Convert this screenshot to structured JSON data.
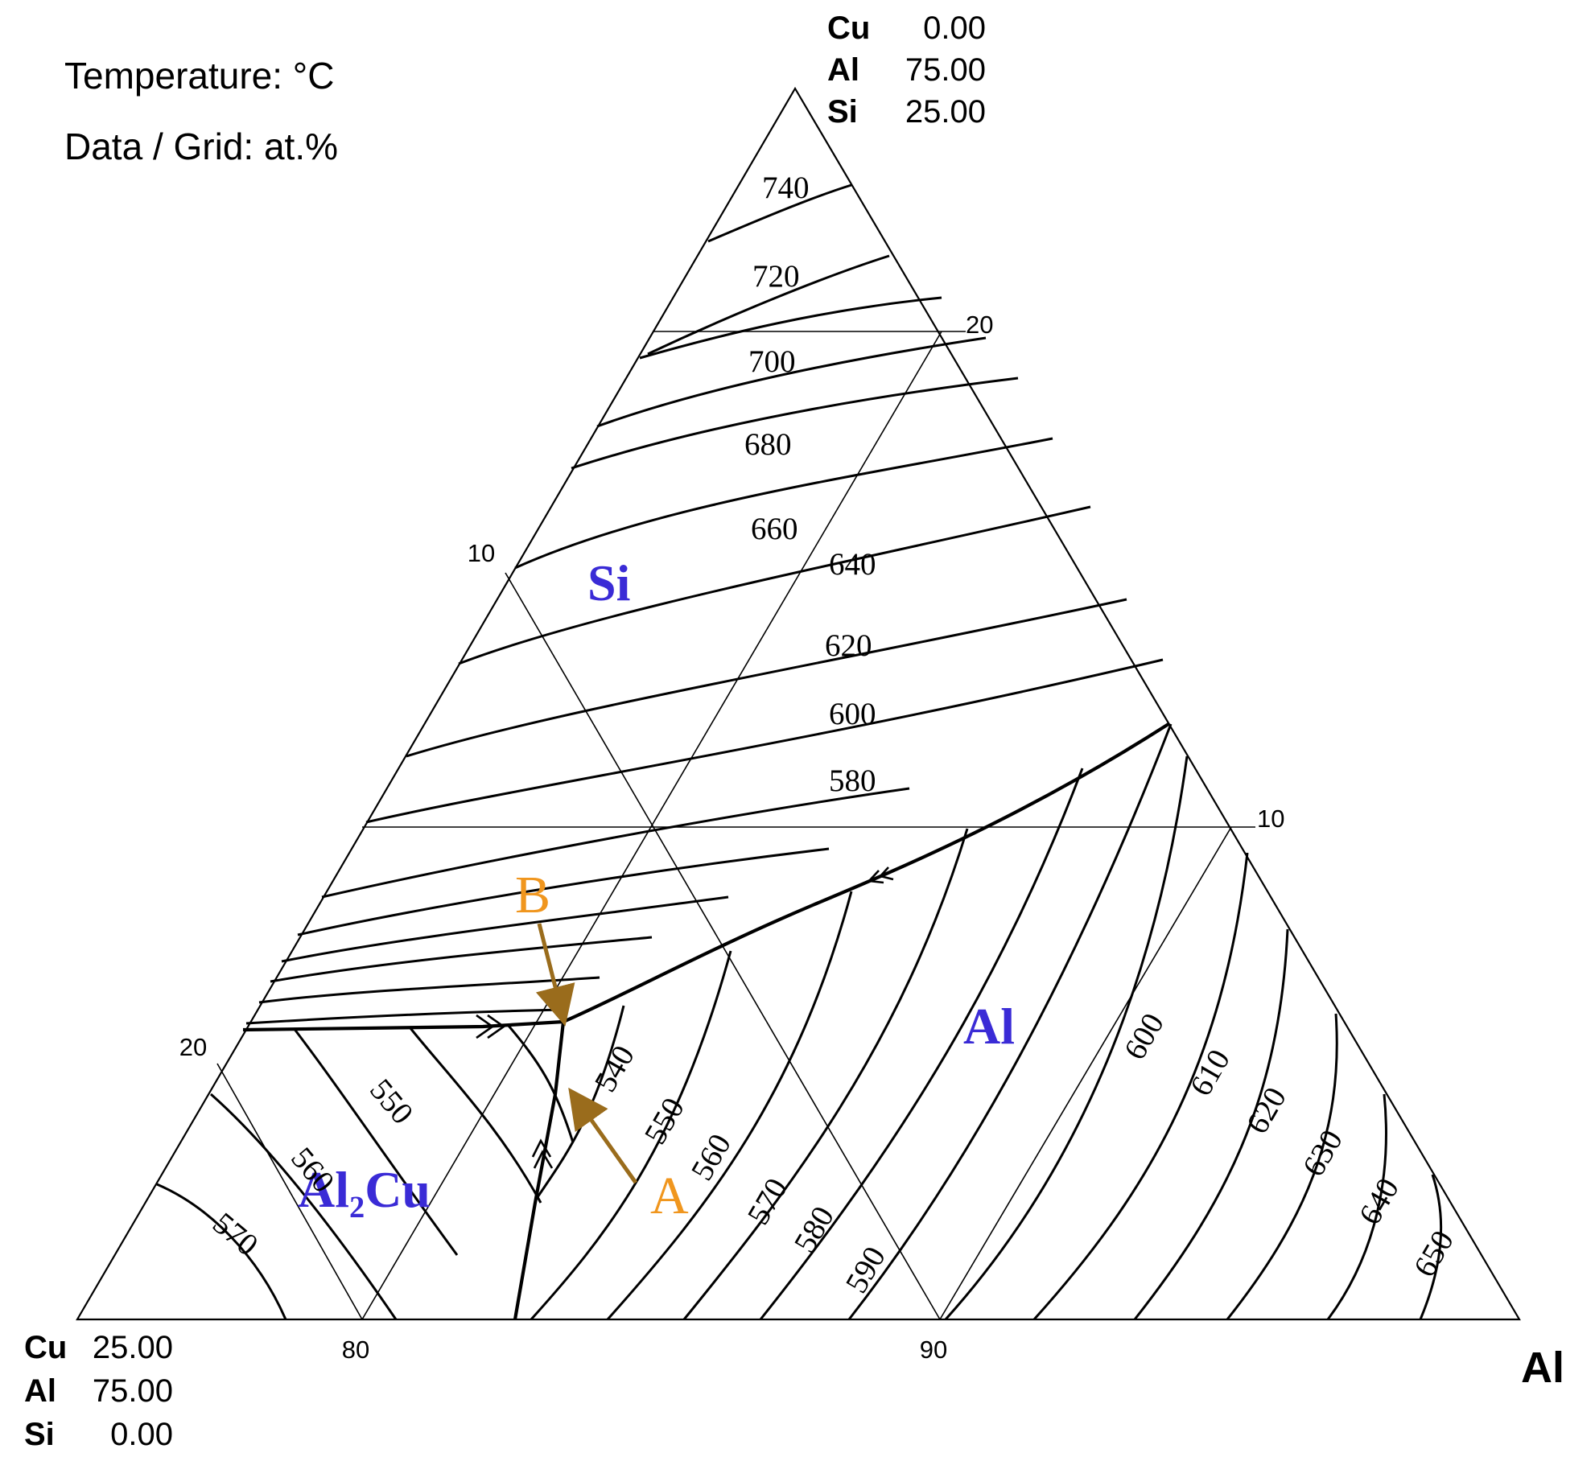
{
  "header": {
    "temperature_label": "Temperature: °C",
    "data_grid_label": "Data / Grid: at.%"
  },
  "top_corner": {
    "rows": [
      {
        "element": "Cu",
        "value": "0.00"
      },
      {
        "element": "Al",
        "value": "75.00"
      },
      {
        "element": "Si",
        "value": "25.00"
      }
    ]
  },
  "left_corner": {
    "rows": [
      {
        "element": "Cu",
        "value": "25.00"
      },
      {
        "element": "Al",
        "value": "75.00"
      },
      {
        "element": "Si",
        "value": "0.00"
      }
    ]
  },
  "right_corner": {
    "label": "Al"
  },
  "grid_ticks": {
    "bottom": [
      "80",
      "90"
    ],
    "left": [
      "10",
      "20"
    ],
    "right": [
      "20",
      "10"
    ]
  },
  "phase_labels": {
    "si": "Si",
    "al": "Al",
    "al2cu": "Al₂Cu"
  },
  "markers": {
    "a": "A",
    "b": "B"
  },
  "isotherm_labels": {
    "si_field": [
      "740",
      "720",
      "700",
      "680",
      "660",
      "640",
      "620",
      "600",
      "580"
    ],
    "al_field": [
      "540",
      "550",
      "560",
      "570",
      "580",
      "590",
      "600",
      "610",
      "620",
      "630",
      "640",
      "650"
    ],
    "al2cu_field": [
      "550",
      "560",
      "570"
    ]
  },
  "colors": {
    "phase_label": "#3a2bd6",
    "marker_text": "#f0961e",
    "arrow": "#9a6c1c",
    "lines": "#000000"
  }
}
